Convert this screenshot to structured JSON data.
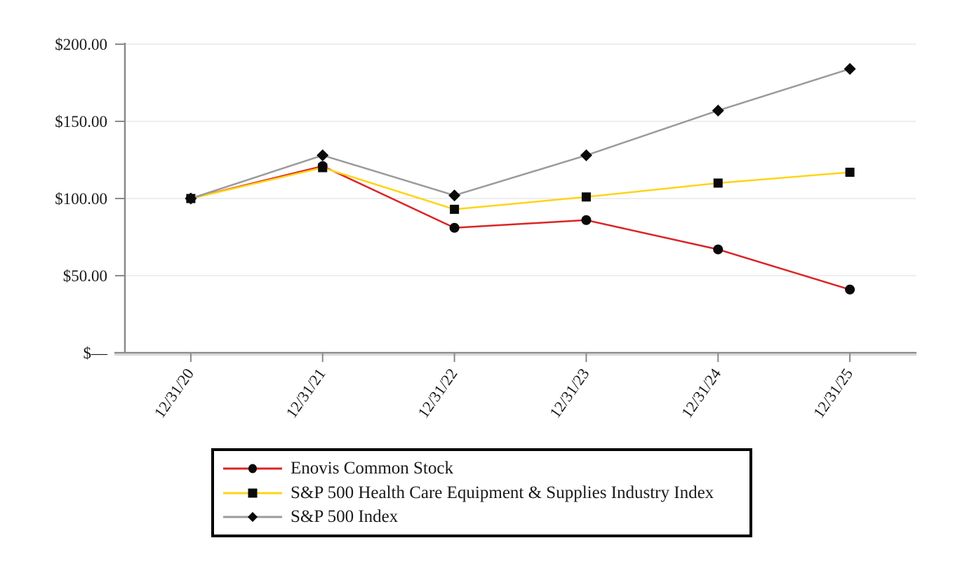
{
  "chart_data": {
    "type": "line",
    "title": "",
    "xlabel": "",
    "ylabel": "",
    "categories": [
      "12/31/20",
      "12/31/21",
      "12/31/22",
      "12/31/23",
      "12/31/24",
      "12/31/25"
    ],
    "series": [
      {
        "name": "Enovis Common Stock",
        "color": "#DB2426",
        "marker": "circle",
        "values": [
          100,
          121,
          81,
          86,
          67,
          41
        ]
      },
      {
        "name": "S&P 500 Health Care Equipment & Supplies Industry Index",
        "color": "#FFD416",
        "marker": "square",
        "values": [
          100,
          120,
          93,
          101,
          110,
          117
        ]
      },
      {
        "name": "S&P 500 Index",
        "color": "#9B9B9B",
        "marker": "diamond",
        "values": [
          100,
          128,
          102,
          128,
          157,
          184
        ]
      }
    ],
    "y_axis": {
      "min": 0,
      "max": 200,
      "ticks": [
        {
          "value": 0,
          "label": "$—"
        },
        {
          "value": 50,
          "label": "$50.00"
        },
        {
          "value": 100,
          "label": "$100.00"
        },
        {
          "value": 150,
          "label": "$150.00"
        },
        {
          "value": 200,
          "label": "$200.00"
        }
      ]
    },
    "grid": true,
    "legend_position": "bottom",
    "marker_color": "#0a0a0a"
  },
  "colors": {
    "gridline": "#E8E8E8",
    "axis": "#8A8A8A",
    "axis_shadow": "#C9C9C9",
    "legend_border": "#000000",
    "text": "#1A1A1A",
    "background": "#FFFFFF"
  }
}
